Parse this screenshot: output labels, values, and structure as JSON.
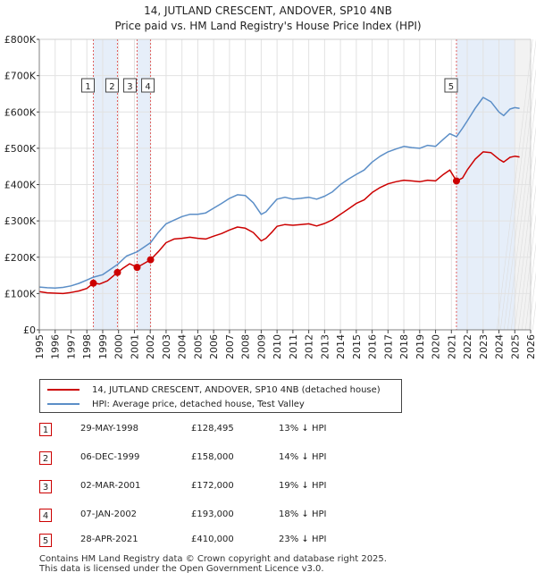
{
  "chart_data": {
    "type": "line",
    "title": "14, JUTLAND CRESCENT, ANDOVER, SP10 4NB",
    "subtitle": "Price paid vs. HM Land Registry's House Price Index (HPI)",
    "xlim": [
      1995,
      2026
    ],
    "ylim": [
      0,
      800000
    ],
    "x_ticks": [
      "1995",
      "1996",
      "1997",
      "1998",
      "1999",
      "2000",
      "2001",
      "2002",
      "2003",
      "2004",
      "2005",
      "2006",
      "2007",
      "2008",
      "2009",
      "2010",
      "2011",
      "2012",
      "2013",
      "2014",
      "2015",
      "2016",
      "2017",
      "2018",
      "2019",
      "2020",
      "2021",
      "2022",
      "2023",
      "2024",
      "2025",
      "2026"
    ],
    "y_ticks": [
      {
        "value": 0,
        "label": "£0"
      },
      {
        "value": 100000,
        "label": "£100K"
      },
      {
        "value": 200000,
        "label": "£200K"
      },
      {
        "value": 300000,
        "label": "£300K"
      },
      {
        "value": 400000,
        "label": "£400K"
      },
      {
        "value": 500000,
        "label": "£500K"
      },
      {
        "value": 600000,
        "label": "£600K"
      },
      {
        "value": 700000,
        "label": "£700K"
      },
      {
        "value": 800000,
        "label": "£800K"
      }
    ],
    "series": [
      {
        "name": "14, JUTLAND CRESCENT, ANDOVER, SP10 4NB (detached house)",
        "color": "#cc0000",
        "points": [
          [
            1995.0,
            105000
          ],
          [
            1995.5,
            102000
          ],
          [
            1996.0,
            101000
          ],
          [
            1996.5,
            100000
          ],
          [
            1997.0,
            103000
          ],
          [
            1997.5,
            107000
          ],
          [
            1998.0,
            114000
          ],
          [
            1998.41,
            128495
          ],
          [
            1998.8,
            126000
          ],
          [
            1999.3,
            135000
          ],
          [
            1999.93,
            158000
          ],
          [
            2000.3,
            170000
          ],
          [
            2000.7,
            182000
          ],
          [
            2001.17,
            172000
          ],
          [
            2001.5,
            180000
          ],
          [
            2002.02,
            193000
          ],
          [
            2002.5,
            215000
          ],
          [
            2003.0,
            240000
          ],
          [
            2003.5,
            250000
          ],
          [
            2004.0,
            252000
          ],
          [
            2004.5,
            255000
          ],
          [
            2005.0,
            252000
          ],
          [
            2005.5,
            250000
          ],
          [
            2006.0,
            258000
          ],
          [
            2006.5,
            265000
          ],
          [
            2007.0,
            275000
          ],
          [
            2007.5,
            283000
          ],
          [
            2008.0,
            280000
          ],
          [
            2008.5,
            268000
          ],
          [
            2009.0,
            245000
          ],
          [
            2009.3,
            252000
          ],
          [
            2009.7,
            270000
          ],
          [
            2010.0,
            285000
          ],
          [
            2010.5,
            290000
          ],
          [
            2011.0,
            288000
          ],
          [
            2011.5,
            290000
          ],
          [
            2012.0,
            292000
          ],
          [
            2012.5,
            286000
          ],
          [
            2013.0,
            293000
          ],
          [
            2013.5,
            303000
          ],
          [
            2014.0,
            318000
          ],
          [
            2014.5,
            333000
          ],
          [
            2015.0,
            348000
          ],
          [
            2015.5,
            358000
          ],
          [
            2016.0,
            378000
          ],
          [
            2016.5,
            392000
          ],
          [
            2017.0,
            402000
          ],
          [
            2017.5,
            408000
          ],
          [
            2018.0,
            412000
          ],
          [
            2018.5,
            410000
          ],
          [
            2019.0,
            408000
          ],
          [
            2019.5,
            412000
          ],
          [
            2020.0,
            410000
          ],
          [
            2020.5,
            428000
          ],
          [
            2020.9,
            440000
          ],
          [
            2021.32,
            410000
          ],
          [
            2021.7,
            418000
          ],
          [
            2022.0,
            440000
          ],
          [
            2022.5,
            470000
          ],
          [
            2023.0,
            490000
          ],
          [
            2023.5,
            488000
          ],
          [
            2024.0,
            470000
          ],
          [
            2024.3,
            462000
          ],
          [
            2024.7,
            475000
          ],
          [
            2025.0,
            478000
          ],
          [
            2025.3,
            476000
          ]
        ]
      },
      {
        "name": "HPI: Average price, detached house, Test Valley",
        "color": "#5b8ec7",
        "points": [
          [
            1995.0,
            118000
          ],
          [
            1995.5,
            116000
          ],
          [
            1996.0,
            115000
          ],
          [
            1996.5,
            117000
          ],
          [
            1997.0,
            121000
          ],
          [
            1997.5,
            128000
          ],
          [
            1998.0,
            137000
          ],
          [
            1998.41,
            145000
          ],
          [
            1999.0,
            152000
          ],
          [
            1999.93,
            180000
          ],
          [
            2000.5,
            203000
          ],
          [
            2001.17,
            215000
          ],
          [
            2002.02,
            240000
          ],
          [
            2002.5,
            268000
          ],
          [
            2003.0,
            292000
          ],
          [
            2003.5,
            302000
          ],
          [
            2004.0,
            312000
          ],
          [
            2004.5,
            318000
          ],
          [
            2005.0,
            318000
          ],
          [
            2005.5,
            322000
          ],
          [
            2006.0,
            335000
          ],
          [
            2006.5,
            348000
          ],
          [
            2007.0,
            362000
          ],
          [
            2007.5,
            372000
          ],
          [
            2008.0,
            370000
          ],
          [
            2008.5,
            350000
          ],
          [
            2009.0,
            318000
          ],
          [
            2009.3,
            325000
          ],
          [
            2009.7,
            345000
          ],
          [
            2010.0,
            360000
          ],
          [
            2010.5,
            365000
          ],
          [
            2011.0,
            360000
          ],
          [
            2011.5,
            362000
          ],
          [
            2012.0,
            365000
          ],
          [
            2012.5,
            360000
          ],
          [
            2013.0,
            368000
          ],
          [
            2013.5,
            380000
          ],
          [
            2014.0,
            400000
          ],
          [
            2014.5,
            415000
          ],
          [
            2015.0,
            428000
          ],
          [
            2015.5,
            440000
          ],
          [
            2016.0,
            462000
          ],
          [
            2016.5,
            478000
          ],
          [
            2017.0,
            490000
          ],
          [
            2017.5,
            498000
          ],
          [
            2018.0,
            505000
          ],
          [
            2018.5,
            502000
          ],
          [
            2019.0,
            500000
          ],
          [
            2019.5,
            508000
          ],
          [
            2020.0,
            505000
          ],
          [
            2020.5,
            525000
          ],
          [
            2020.9,
            540000
          ],
          [
            2021.32,
            532000
          ],
          [
            2021.7,
            555000
          ],
          [
            2022.0,
            575000
          ],
          [
            2022.5,
            610000
          ],
          [
            2023.0,
            640000
          ],
          [
            2023.5,
            628000
          ],
          [
            2024.0,
            600000
          ],
          [
            2024.3,
            590000
          ],
          [
            2024.7,
            608000
          ],
          [
            2025.0,
            612000
          ],
          [
            2025.3,
            610000
          ]
        ]
      }
    ],
    "sales": [
      {
        "n": "1",
        "x": 1998.41,
        "value": 128495
      },
      {
        "n": "2",
        "x": 1999.93,
        "value": 158000
      },
      {
        "n": "3",
        "x": 2001.17,
        "value": 172000
      },
      {
        "n": "4",
        "x": 2002.02,
        "value": 193000
      },
      {
        "n": "5",
        "x": 2021.32,
        "value": 410000
      }
    ],
    "shaded_ranges": [
      [
        1998.41,
        1999.93
      ],
      [
        2001.17,
        2002.02
      ],
      [
        2021.32,
        2025.0
      ],
      [
        2025.0,
        2026.0
      ]
    ],
    "grid": true
  },
  "legend": {
    "property_label": "14, JUTLAND CRESCENT, ANDOVER, SP10 4NB (detached house)",
    "hpi_label": "HPI: Average price, detached house, Test Valley",
    "property_color": "#cc0000",
    "hpi_color": "#5b8ec7"
  },
  "sales_table": [
    {
      "n": "1",
      "date": "29-MAY-1998",
      "price": "£128,495",
      "hpi": "13% ↓ HPI"
    },
    {
      "n": "2",
      "date": "06-DEC-1999",
      "price": "£158,000",
      "hpi": "14% ↓ HPI"
    },
    {
      "n": "3",
      "date": "02-MAR-2001",
      "price": "£172,000",
      "hpi": "19% ↓ HPI"
    },
    {
      "n": "4",
      "date": "07-JAN-2002",
      "price": "£193,000",
      "hpi": "18% ↓ HPI"
    },
    {
      "n": "5",
      "date": "28-APR-2021",
      "price": "£410,000",
      "hpi": "23% ↓ HPI"
    }
  ],
  "footer": {
    "line1": "Contains HM Land Registry data © Crown copyright and database right 2025.",
    "line2": "This data is licensed under the Open Government Licence v3.0."
  }
}
